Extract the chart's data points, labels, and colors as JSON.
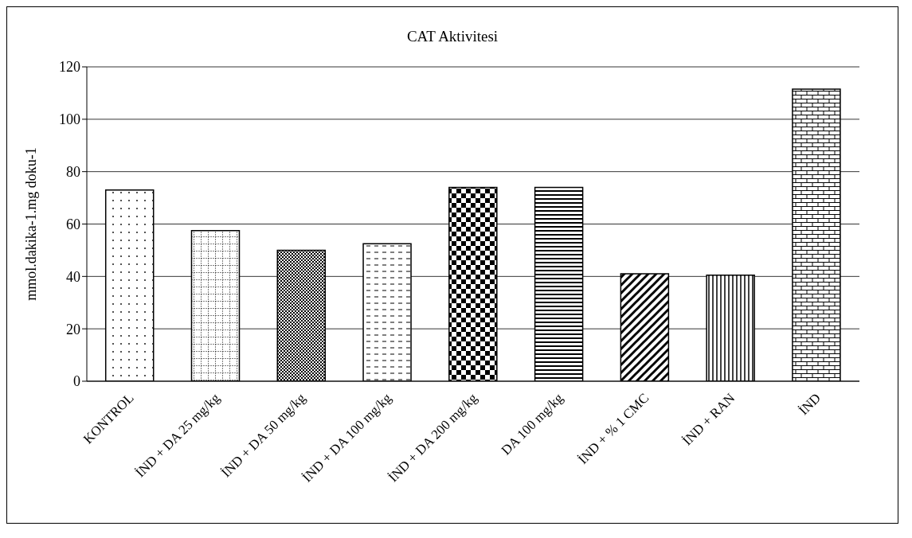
{
  "chart_data": {
    "type": "bar",
    "title": "CAT Aktivitesi",
    "ylabel": "mmol.dakika-1.mg doku-1",
    "categories": [
      "KONTROL",
      "İND + DA 25 mg/kg",
      "İND + DA 50 mg/kg",
      "İND + DA 100 mg/kg",
      "İND + DA 200 mg/kg",
      "DA 100 mg/kg",
      "İND + % 1  CMC",
      "İND + RAN",
      "İND"
    ],
    "values": [
      73,
      57.5,
      50,
      52.5,
      74,
      74,
      41,
      40.5,
      111.5
    ],
    "color": "#000000",
    "ylim": [
      0,
      120
    ],
    "yticks": [
      0,
      20,
      40,
      60,
      80,
      100,
      120
    ],
    "grid": "y"
  }
}
